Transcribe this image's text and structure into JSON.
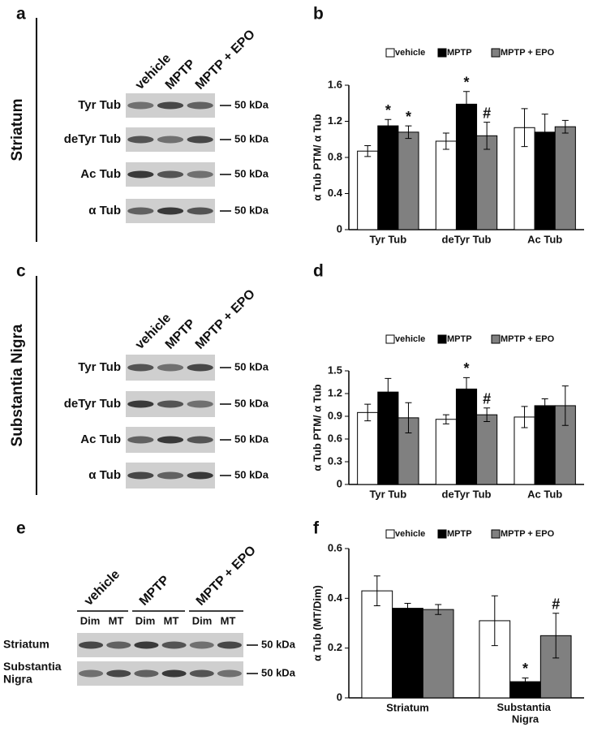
{
  "chart_data": [
    {
      "type": "bar",
      "panel_label": "b",
      "y_label": "α Tub PTM/ α Tub",
      "categories": [
        "Tyr Tub",
        "deTyr Tub",
        "Ac Tub"
      ],
      "ylim": [
        0,
        1.6
      ],
      "yticks": [
        0,
        0.4,
        0.8,
        1.2,
        1.6
      ],
      "series": [
        {
          "name": "vehicle",
          "color": "#ffffff",
          "values": [
            0.87,
            0.98,
            1.13
          ],
          "errors": [
            0.06,
            0.09,
            0.21
          ],
          "annotations": [
            null,
            null,
            null
          ]
        },
        {
          "name": "MPTP",
          "color": "#000000",
          "values": [
            1.15,
            1.39,
            1.08
          ],
          "errors": [
            0.07,
            0.14,
            0.2
          ],
          "annotations": [
            "*",
            "*",
            null
          ]
        },
        {
          "name": "MPTP + EPO",
          "color": "#808080",
          "values": [
            1.08,
            1.04,
            1.14
          ],
          "errors": [
            0.07,
            0.15,
            0.07
          ],
          "annotations": [
            "*",
            "#",
            null
          ]
        }
      ]
    },
    {
      "type": "bar",
      "panel_label": "d",
      "y_label": "α Tub PTM/ α Tub",
      "categories": [
        "Tyr Tub",
        "deTyr Tub",
        "Ac Tub"
      ],
      "ylim": [
        0,
        1.5
      ],
      "yticks": [
        0,
        0.3,
        0.6,
        0.9,
        1.2,
        1.5
      ],
      "series": [
        {
          "name": "vehicle",
          "color": "#ffffff",
          "values": [
            0.95,
            0.86,
            0.89
          ],
          "errors": [
            0.11,
            0.06,
            0.14
          ],
          "annotations": [
            null,
            null,
            null
          ]
        },
        {
          "name": "MPTP",
          "color": "#000000",
          "values": [
            1.22,
            1.26,
            1.04
          ],
          "errors": [
            0.18,
            0.15,
            0.09
          ],
          "annotations": [
            null,
            "*",
            null
          ]
        },
        {
          "name": "MPTP + EPO",
          "color": "#808080",
          "values": [
            0.88,
            0.92,
            1.04
          ],
          "errors": [
            0.2,
            0.09,
            0.26
          ],
          "annotations": [
            null,
            "#",
            null
          ]
        }
      ]
    },
    {
      "type": "bar",
      "panel_label": "f",
      "y_label": "α Tub (MT/Dim)",
      "categories": [
        "Striatum",
        "Substantia Nigra"
      ],
      "ylim": [
        0,
        0.6
      ],
      "yticks": [
        0,
        0.2,
        0.4,
        0.6
      ],
      "series": [
        {
          "name": "vehicle",
          "color": "#ffffff",
          "values": [
            0.43,
            0.31
          ],
          "errors": [
            0.06,
            0.1
          ],
          "annotations": [
            null,
            null
          ]
        },
        {
          "name": "MPTP",
          "color": "#000000",
          "values": [
            0.36,
            0.065
          ],
          "errors": [
            0.02,
            0.015
          ],
          "annotations": [
            null,
            "*"
          ]
        },
        {
          "name": "MPTP + EPO",
          "color": "#808080",
          "values": [
            0.355,
            0.25
          ],
          "errors": [
            0.02,
            0.09
          ],
          "annotations": [
            null,
            "#"
          ]
        }
      ]
    }
  ],
  "blot_panels": [
    {
      "panel_label": "a",
      "region": "Striatum",
      "lanes": [
        "vehicle",
        "MPTP",
        "MPTP + EPO"
      ],
      "rows": [
        {
          "label": "Tyr Tub",
          "marker": "50 kDa"
        },
        {
          "label": "deTyr Tub",
          "marker": "50 kDa"
        },
        {
          "label": "Ac Tub",
          "marker": "50 kDa"
        },
        {
          "label": "α Tub",
          "marker": "50 kDa"
        }
      ]
    },
    {
      "panel_label": "c",
      "region": "Substantia Nigra",
      "lanes": [
        "vehicle",
        "MPTP",
        "MPTP + EPO"
      ],
      "rows": [
        {
          "label": "Tyr Tub",
          "marker": "50 kDa"
        },
        {
          "label": "deTyr Tub",
          "marker": "50 kDa"
        },
        {
          "label": "Ac Tub",
          "marker": "50 kDa"
        },
        {
          "label": "α Tub",
          "marker": "50 kDa"
        }
      ]
    },
    {
      "panel_label": "e",
      "lanes": [
        "vehicle",
        "MPTP",
        "MPTP + EPO"
      ],
      "sublanes": [
        "Dim",
        "MT"
      ],
      "rows": [
        {
          "label": "Striatum",
          "marker": "50 kDa"
        },
        {
          "label": "Substantia Nigra",
          "marker": "50 kDa"
        }
      ]
    }
  ]
}
